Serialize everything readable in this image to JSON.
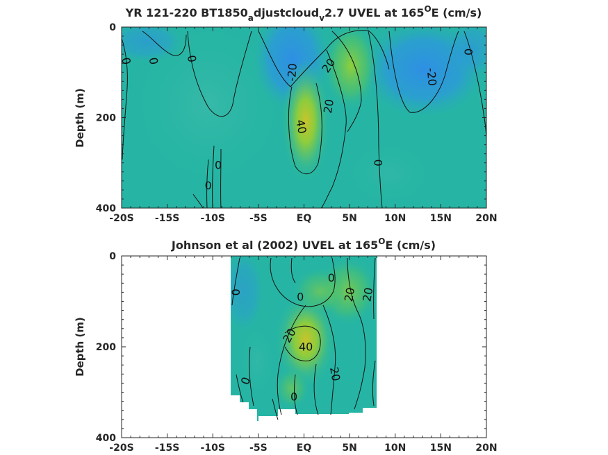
{
  "chart_data": [
    {
      "type": "heatmap",
      "title_main": "YR 121-220 BT1850",
      "title_sub1": "a",
      "title_mid": "djustcloud",
      "title_sub2": "v",
      "title_end_pre": "2.7 UVEL at 165",
      "title_sup": "O",
      "title_end_post": "E (cm/s)",
      "ylabel": "Depth (m)",
      "xlim": [
        -20,
        20
      ],
      "ylim": [
        0,
        400
      ],
      "xticks": [
        -20,
        -15,
        -10,
        -5,
        0,
        5,
        10,
        15,
        20
      ],
      "xtick_labels": [
        "-20S",
        "-15S",
        "-10S",
        "-5S",
        "EQ",
        "5N",
        "10N",
        "15N",
        "20N"
      ],
      "yticks": [
        0,
        200,
        400
      ],
      "ytick_labels": [
        "0",
        "200",
        "400"
      ],
      "y_reversed": true,
      "colormap": "parula",
      "contour_labels": [
        {
          "text": "0",
          "lat": -19.5,
          "depth": 75,
          "angle": 80
        },
        {
          "text": "0",
          "lat": -16.5,
          "depth": 75,
          "angle": 80
        },
        {
          "text": "0",
          "lat": -12.3,
          "depth": 70,
          "angle": 80
        },
        {
          "text": "-20",
          "lat": -1.3,
          "depth": 100,
          "angle": -85
        },
        {
          "text": "20",
          "lat": 2.7,
          "depth": 85,
          "angle": -55
        },
        {
          "text": "20",
          "lat": 2.7,
          "depth": 175,
          "angle": -80
        },
        {
          "text": "40",
          "lat": -0.3,
          "depth": 220,
          "angle": 80
        },
        {
          "text": "0",
          "lat": -9.4,
          "depth": 305,
          "angle": 0
        },
        {
          "text": "0",
          "lat": -10.5,
          "depth": 350,
          "angle": 0
        },
        {
          "text": "0",
          "lat": 8.1,
          "depth": 300,
          "angle": 90
        },
        {
          "text": "0",
          "lat": 18.0,
          "depth": 55,
          "angle": 90
        },
        {
          "text": "-20",
          "lat": 14.0,
          "depth": 110,
          "angle": 85
        }
      ]
    },
    {
      "type": "heatmap",
      "title_pre": "Johnson et al (2002) UVEL at 165",
      "title_sup": "O",
      "title_post": "E (cm/s)",
      "ylabel": "Depth (m)",
      "xlim": [
        -20,
        20
      ],
      "ylim": [
        0,
        400
      ],
      "xticks": [
        -20,
        -15,
        -10,
        -5,
        0,
        5,
        10,
        15,
        20
      ],
      "xtick_labels": [
        "-20S",
        "-15S",
        "-10S",
        "-5S",
        "EQ",
        "5N",
        "10N",
        "15N",
        "20N"
      ],
      "yticks": [
        0,
        200,
        400
      ],
      "ytick_labels": [
        "0",
        "200",
        "400"
      ],
      "y_reversed": true,
      "colormap": "parula",
      "data_extent_lat": [
        -8,
        8
      ],
      "contour_labels": [
        {
          "text": "0",
          "lat": -7.5,
          "depth": 80,
          "angle": 90
        },
        {
          "text": "0",
          "lat": -0.4,
          "depth": 90,
          "angle": 0
        },
        {
          "text": "0",
          "lat": 3.0,
          "depth": 48,
          "angle": 0
        },
        {
          "text": "20",
          "lat": 5.0,
          "depth": 85,
          "angle": -80
        },
        {
          "text": "20",
          "lat": 7.0,
          "depth": 85,
          "angle": -80
        },
        {
          "text": "20",
          "lat": -1.6,
          "depth": 175,
          "angle": -60
        },
        {
          "text": "40",
          "lat": 0.2,
          "depth": 200,
          "angle": 0
        },
        {
          "text": "20",
          "lat": 3.4,
          "depth": 260,
          "angle": 80
        },
        {
          "text": "0",
          "lat": -6.4,
          "depth": 275,
          "angle": -70
        },
        {
          "text": "0",
          "lat": -1.1,
          "depth": 310,
          "angle": 0
        }
      ]
    }
  ]
}
